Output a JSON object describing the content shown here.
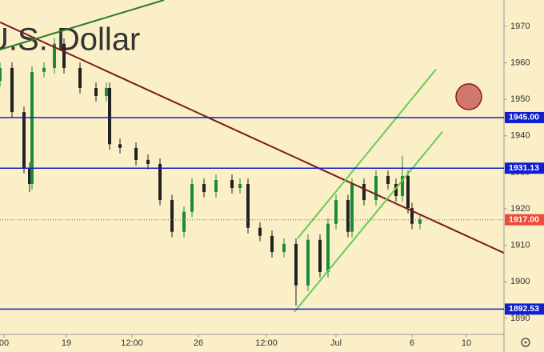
{
  "chart_data": {
    "type": "candlestick",
    "watermark": "U.S. Dollar",
    "x": [
      0,
      3,
      6,
      7.4,
      8,
      11,
      13.6,
      16,
      20,
      24,
      26.6,
      27.4,
      30,
      34,
      37,
      40,
      43,
      46,
      48,
      51,
      54,
      58,
      60,
      62,
      65,
      68,
      71,
      74,
      77,
      80,
      82,
      84,
      87,
      88,
      91,
      94,
      97,
      99,
      100.6,
      102,
      103,
      105
    ],
    "open": [
      1955.0,
      1958.6,
      1946.5,
      1931.2,
      1926.8,
      1957.5,
      1958.6,
      1965.2,
      1958.6,
      1953.1,
      1950.9,
      1953.1,
      1937.7,
      1936.7,
      1933.4,
      1932.3,
      1922.4,
      1913.7,
      1919.2,
      1926.8,
      1924.6,
      1927.9,
      1925.7,
      1926.8,
      1914.8,
      1912.6,
      1908.2,
      1910.4,
      1899.0,
      1911.5,
      1902.7,
      1915.9,
      1922.4,
      1913.7,
      1926.8,
      1922.4,
      1929.0,
      1926.8,
      1923.5,
      1929.0,
      1920.2,
      1915.9
    ],
    "high": [
      1960.1,
      1960.1,
      1948.0,
      1932.7,
      1959.0,
      1960.1,
      1966.7,
      1966.7,
      1960.1,
      1954.6,
      1954.6,
      1954.6,
      1939.2,
      1938.2,
      1934.9,
      1933.8,
      1923.9,
      1920.7,
      1928.3,
      1928.3,
      1929.4,
      1929.4,
      1928.3,
      1928.3,
      1916.3,
      1914.1,
      1911.9,
      1911.9,
      1913.0,
      1913.0,
      1917.4,
      1923.9,
      1923.9,
      1928.3,
      1928.3,
      1930.5,
      1930.5,
      1928.3,
      1934.5,
      1930.5,
      1921.7,
      1918.6
    ],
    "low": [
      1953.5,
      1945.0,
      1929.7,
      1924.6,
      1925.3,
      1956.0,
      1957.1,
      1957.1,
      1951.6,
      1949.4,
      1949.4,
      1936.2,
      1935.2,
      1931.9,
      1930.8,
      1920.9,
      1912.2,
      1912.2,
      1917.7,
      1923.1,
      1923.1,
      1924.2,
      1924.2,
      1913.3,
      1911.1,
      1906.7,
      1906.7,
      1893.5,
      1897.5,
      1901.2,
      1901.2,
      1914.4,
      1912.2,
      1912.2,
      1920.9,
      1920.9,
      1925.3,
      1922.0,
      1922.0,
      1918.7,
      1914.4,
      1914.4
    ],
    "close": [
      1958.6,
      1946.5,
      1931.2,
      1926.8,
      1957.5,
      1958.6,
      1965.2,
      1958.6,
      1953.1,
      1950.9,
      1953.1,
      1937.7,
      1936.7,
      1933.4,
      1932.3,
      1922.4,
      1913.7,
      1919.2,
      1926.8,
      1924.6,
      1927.9,
      1925.7,
      1926.8,
      1914.8,
      1912.6,
      1908.2,
      1910.4,
      1899.0,
      1911.5,
      1902.7,
      1915.9,
      1922.4,
      1913.7,
      1926.8,
      1922.4,
      1929.0,
      1926.8,
      1923.5,
      1929.0,
      1920.2,
      1915.9,
      1917.1
    ],
    "up_color": "#1b8a3a",
    "down_color": "#222222",
    "xlim": [
      0,
      126
    ],
    "xticks": [
      {
        "value": 1,
        "label": "00"
      },
      {
        "value": 16.6,
        "label": "19"
      },
      {
        "value": 33,
        "label": "12:00"
      },
      {
        "value": 49.6,
        "label": "26"
      },
      {
        "value": 66.6,
        "label": "12:00"
      },
      {
        "value": 84,
        "label": "Jul"
      },
      {
        "value": 103,
        "label": "6"
      },
      {
        "value": 116.6,
        "label": "10"
      }
    ],
    "ylim": [
      1885.6,
      1977.2
    ],
    "yticks": [
      1890,
      1900,
      1910,
      1920,
      1930,
      1940,
      1950,
      1960,
      1970
    ],
    "price_levels": [
      {
        "value": 1945,
        "label": "1945.00",
        "color": "#1020d0"
      },
      {
        "value": 1931.13,
        "label": "1931.13",
        "color": "#1020d0"
      },
      {
        "value": 1892.53,
        "label": "1892.53",
        "color": "#1020d0"
      }
    ],
    "current_price": {
      "value": 1917,
      "label": "1917.00",
      "color": "#ef4b3c"
    },
    "trendlines": [
      {
        "color": "#7a1a1a",
        "x": [
          0,
          126
        ],
        "y": [
          1971.1,
          1907.9
        ]
      },
      {
        "color": "#2a7a2a",
        "x": [
          0,
          41
        ],
        "y": [
          1963.6,
          1977.2
        ]
      },
      {
        "color": "#66cc55",
        "x": [
          74.4,
          109
        ],
        "y": [
          1911.9,
          1958.2
        ]
      },
      {
        "color": "#66cc55",
        "x": [
          73.6,
          110.6
        ],
        "y": [
          1891.8,
          1941.1
        ]
      }
    ],
    "marker": {
      "x": 117.2,
      "y": 1950.7,
      "color": "#c0504d"
    }
  }
}
